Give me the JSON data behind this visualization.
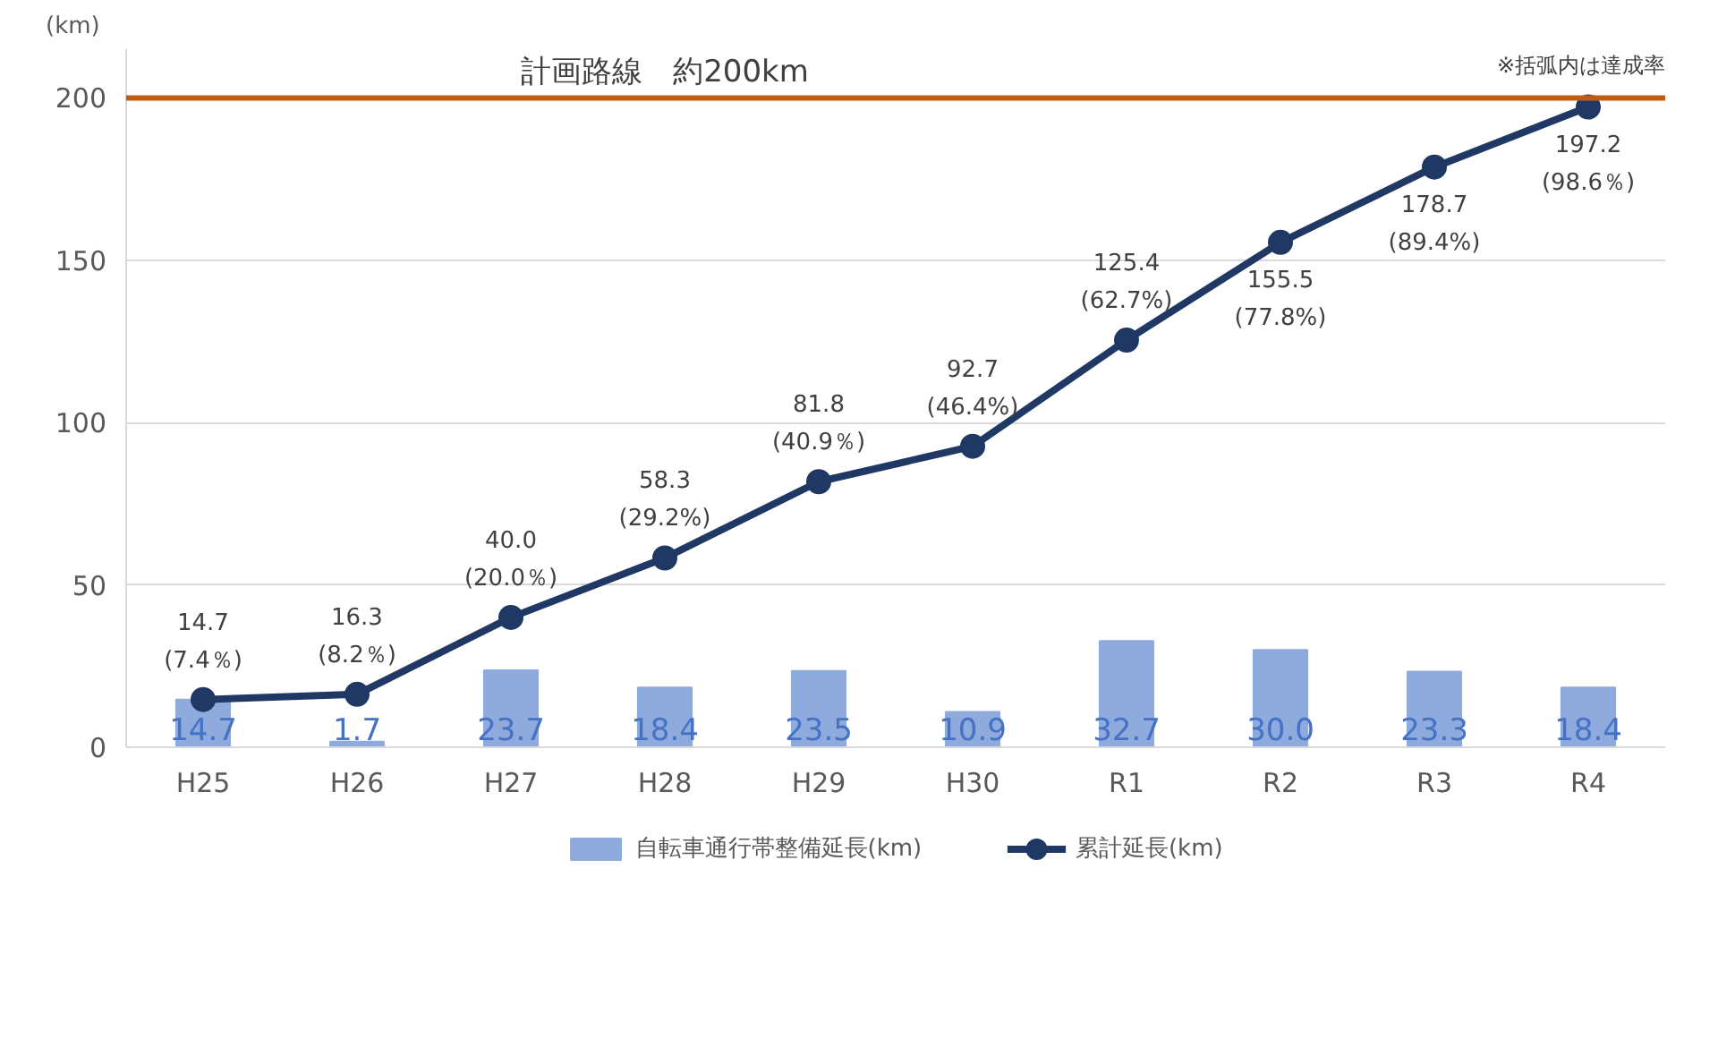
{
  "chart_data": {
    "type": "bar",
    "ylabel": "(km)",
    "categories": [
      "H25",
      "H26",
      "H27",
      "H28",
      "H29",
      "H30",
      "R1",
      "R2",
      "R3",
      "R4"
    ],
    "ylim": [
      0,
      215
    ],
    "yticks": [
      0,
      50,
      100,
      150,
      200
    ],
    "grid": "y",
    "legend": "bottom",
    "series": [
      {
        "name": "自転車通行帯整備延長(km)",
        "color": "#8faadc",
        "values": [
          14.7,
          1.7,
          23.7,
          18.4,
          23.5,
          10.9,
          32.7,
          30.0,
          23.3,
          18.4
        ],
        "value_labels": [
          "14.7",
          "1.7",
          "23.7",
          "18.4",
          "23.5",
          "10.9",
          "32.7",
          "30.0",
          "23.3",
          "18.4"
        ]
      },
      {
        "name": "累計延長(km)",
        "type": "line",
        "color": "#1f3864",
        "marker": "circle",
        "values": [
          14.7,
          16.3,
          40.0,
          58.3,
          81.8,
          92.7,
          125.4,
          155.5,
          178.7,
          197.2
        ],
        "value_labels": [
          "14.7\n(7.4％)",
          "16.3\n(8.2％)",
          "40.0\n(20.0％)",
          "58.3\n(29.2%)",
          "81.8\n(40.9％)",
          "92.7\n(46.4%)",
          "125.4\n(62.7%)",
          "155.5\n(77.8%)",
          "178.7\n(89.4%)",
          "197.2\n(98.6％)"
        ]
      }
    ],
    "ref_lines": [
      {
        "axis": "y",
        "value": 200,
        "label": "計画路線　約200km",
        "color": "#c55a11"
      }
    ],
    "annotations": [
      "※括弧内は達成率"
    ]
  }
}
